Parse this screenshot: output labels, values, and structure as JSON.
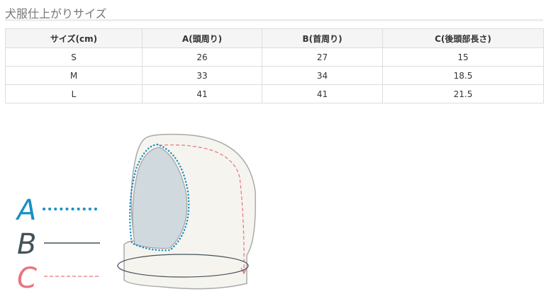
{
  "title": "犬服仕上がりサイズ",
  "table": {
    "headers": [
      "サイズ(cm)",
      "A(頭周り)",
      "B(首周り)",
      "C(後頭部長さ)"
    ],
    "rows": [
      [
        "S",
        "26",
        "27",
        "15"
      ],
      [
        "M",
        "33",
        "34",
        "18.5"
      ],
      [
        "L",
        "41",
        "41",
        "21.5"
      ]
    ]
  },
  "legend": [
    {
      "letter": "A",
      "color": "#1a8fc4",
      "style": "dotted"
    },
    {
      "letter": "B",
      "color": "#44525a",
      "style": "solid"
    },
    {
      "letter": "C",
      "color": "#e8737f",
      "style": "dashed"
    }
  ]
}
